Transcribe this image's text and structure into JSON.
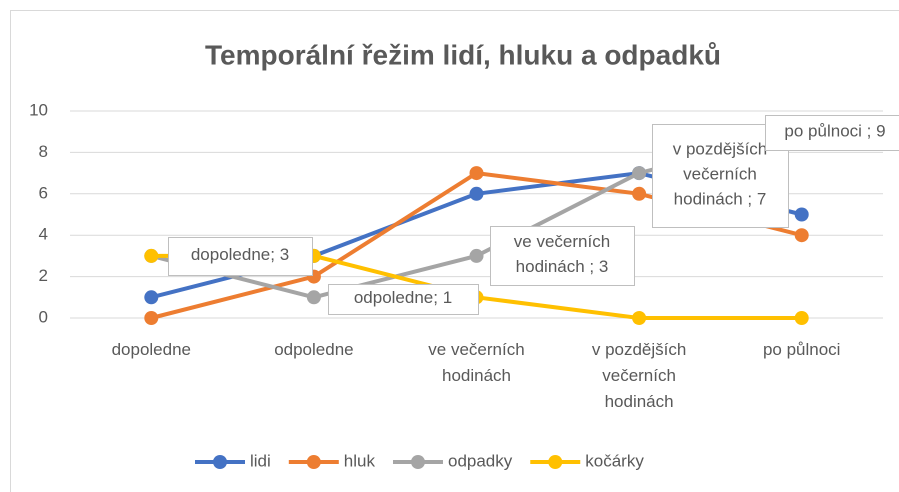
{
  "chart_data": {
    "type": "line",
    "title": "Temporální řežim lidí, hluku a odpadků",
    "categories": [
      "dopoledne",
      "odpoledne",
      "ve večerních hodinách",
      "v pozdějších večerních hodinách",
      "po půlnoci"
    ],
    "series": [
      {
        "name": "lidi",
        "color": "#4472c4",
        "values": [
          1,
          3,
          6,
          7,
          5
        ]
      },
      {
        "name": "hluk",
        "color": "#ed7d31",
        "values": [
          0,
          2,
          7,
          6,
          4
        ]
      },
      {
        "name": "odpadky",
        "color": "#a5a5a5",
        "values": [
          3,
          1,
          3,
          7,
          9
        ],
        "value_labels": [
          "dopoledne; 3",
          "odpoledne; 1",
          "ve večerních hodinách ; 3",
          "v pozdějších večerních hodinách ; 7",
          "po půlnoci ; 9"
        ]
      },
      {
        "name": "kočárky",
        "color": "#ffc000",
        "values": [
          3,
          3,
          1,
          0,
          0
        ]
      }
    ],
    "ylim": [
      0,
      10
    ],
    "yticks": [
      0,
      2,
      4,
      6,
      8,
      10
    ],
    "grid": true,
    "legend": "bottom"
  }
}
